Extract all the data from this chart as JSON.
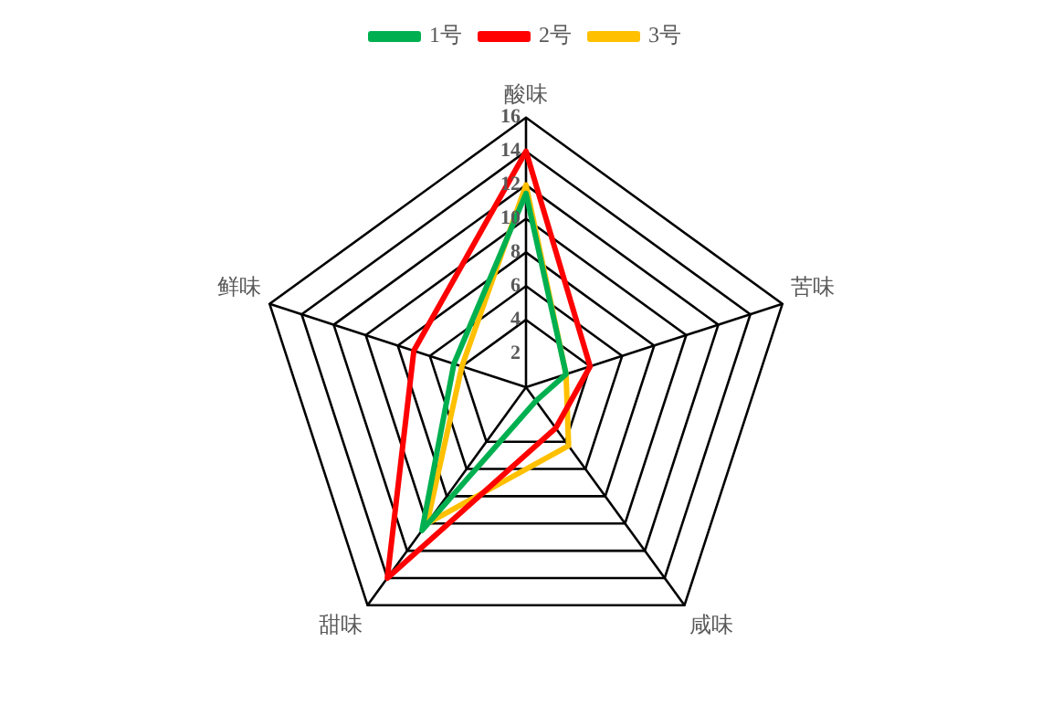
{
  "chart_data": {
    "type": "radar",
    "categories": [
      "酸味",
      "苦味",
      "咸味",
      "甜味",
      "鲜味"
    ],
    "series": [
      {
        "name": "1号",
        "color": "#00b050",
        "values": [
          11.5,
          2.5,
          1,
          10.5,
          4.5
        ]
      },
      {
        "name": "2号",
        "color": "#ff0000",
        "values": [
          14,
          4,
          3,
          14,
          7
        ]
      },
      {
        "name": "3号",
        "color": "#ffc000",
        "values": [
          12,
          2.5,
          4.3,
          10,
          4
        ]
      }
    ],
    "ylim": [
      0,
      16
    ],
    "yticks": [
      2,
      4,
      6,
      8,
      10,
      12,
      14,
      16
    ],
    "legend": "top",
    "marker": "none"
  }
}
